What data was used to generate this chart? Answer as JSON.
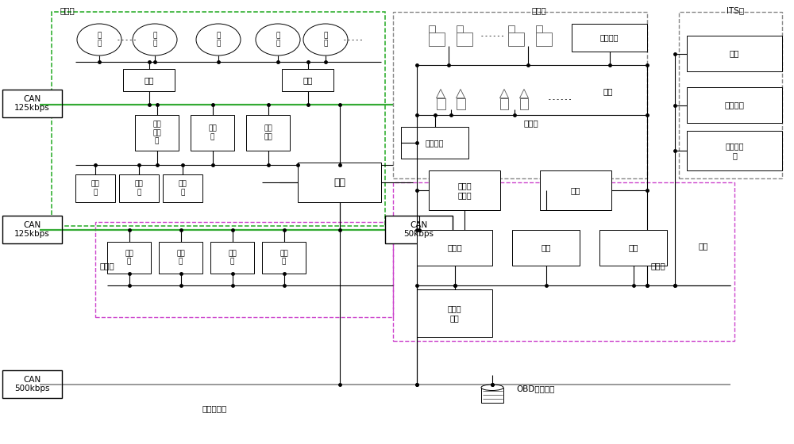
{
  "bg_color": "#ffffff",
  "fig_width": 10.0,
  "fig_height": 5.6,
  "labels": {
    "cheshenbu": "车身部",
    "xinxibu": "信息部",
    "anquanbu": "安全部",
    "dichanbu": "底盘部",
    "ITS": "ITS部",
    "mada": "马\n达",
    "kaiguan": "开\n关",
    "kongdiao": "空调",
    "chemen": "车门",
    "can125_1": "CAN\n125kbps",
    "can125_2": "CAN\n125kbps",
    "can50": "CAN\n50kbps",
    "can500": "CAN\n500kbps",
    "zishiying": "自适\n应前\n灯",
    "yibiao": "仪表\n板",
    "yaokong": "遥控\n门锁",
    "wanguan": "网关",
    "qianda1": "前大\n灯",
    "fudian1": "富电\n动",
    "zuhe1": "组合\n灯",
    "qianda2": "前大\n灯",
    "fudian2": "富电\n动",
    "zuhe2": "组合\n灯",
    "zuhe3": "组合\n灯",
    "guzhang": "故障诊断部",
    "OBD": "OBD诊断工具",
    "qizhen": "气震控制",
    "yinbaoguan": "引爆管",
    "fadongji_td": "发动机\n传动部",
    "fadongji": "发动机",
    "zhuanxiang": "转向",
    "zhidong": "制动",
    "zidong": "自动变\n速箱",
    "taiya": "胎压",
    "chengke": "乘客检测",
    "leida": "雷达",
    "baixian": "白线检测",
    "xunhang": "自适应巡\n航",
    "ziwang1": "子网",
    "ziwang2": "子网"
  }
}
